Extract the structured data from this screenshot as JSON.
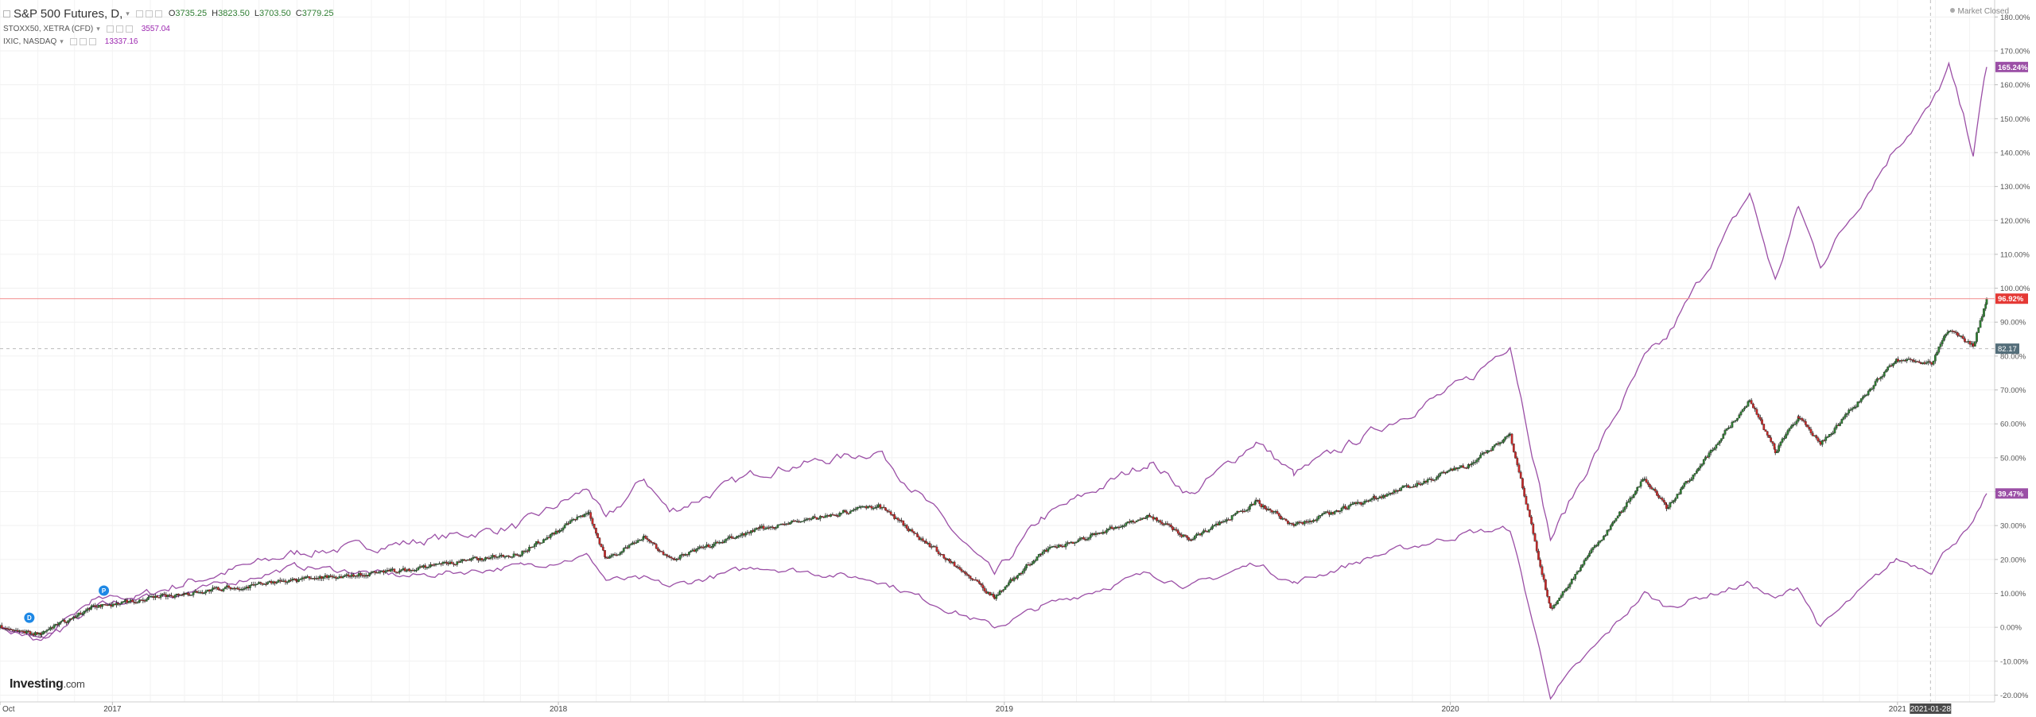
{
  "header": {
    "symbol": "S&P 500 Futures, D,",
    "ohlc": {
      "o_label": "O",
      "o": "3735.25",
      "h_label": "H",
      "h": "3823.50",
      "l_label": "L",
      "l": "3703.50",
      "c_label": "C",
      "c": "3779.25"
    },
    "compare": [
      {
        "name": "STOXX50, XETRA (CFD)",
        "value": "3557.04"
      },
      {
        "name": "IXIC, NASDAQ",
        "value": "13337.16"
      }
    ]
  },
  "status": "Market Closed",
  "branding": {
    "name": "Investing",
    "suffix": ".com"
  },
  "markers": [
    {
      "letter": "D",
      "kind": "dividend"
    },
    {
      "letter": "P",
      "kind": "event"
    }
  ],
  "crosshair_date": "2021-01-28",
  "colors": {
    "up": "#2e7d32",
    "down": "#c62828",
    "compare": "#9b4fa6",
    "last_line": "#f28b8b",
    "last_tag": "#e53935",
    "ref_tag": "#546e7a"
  },
  "chart_data": {
    "type": "line",
    "y_unit": "percent change",
    "ylim": [
      -22,
      185
    ],
    "x_start": "2016-10-01",
    "x_end": "2021-03-15",
    "x_ticks": [
      {
        "date": "2016-10-01",
        "label": "Oct"
      },
      {
        "date": "2017-01-01",
        "label": "2017"
      },
      {
        "date": "2018-01-01",
        "label": "2018"
      },
      {
        "date": "2019-01-01",
        "label": "2019"
      },
      {
        "date": "2020-01-01",
        "label": "2020"
      },
      {
        "date": "2021-01-01",
        "label": "2021"
      }
    ],
    "y_ticks": [
      -20,
      -10,
      0,
      10,
      20,
      30,
      40,
      50,
      60,
      70,
      80,
      90,
      100,
      110,
      120,
      130,
      140,
      150,
      160,
      170,
      180
    ],
    "y_tick_labels": [
      "-20.00%",
      "-10.00%",
      "0.00%",
      "10.00%",
      "20.00%",
      "30.00%",
      "40.00%",
      "50.00%",
      "60.00%",
      "70.00%",
      "80.00%",
      "90.00%",
      "100.00%",
      "110.00%",
      "120.00%",
      "130.00%",
      "140.00%",
      "150.00%",
      "160.00%",
      "170.00%",
      "180.00%"
    ],
    "grid": true,
    "series": [
      {
        "name": "S&P 500 Futures",
        "style": "candlestick",
        "points": [
          [
            "2016-10-01",
            0
          ],
          [
            "2016-11-04",
            -2
          ],
          [
            "2016-12-15",
            6
          ],
          [
            "2017-03-01",
            10
          ],
          [
            "2017-06-01",
            14
          ],
          [
            "2017-09-01",
            17
          ],
          [
            "2017-12-01",
            22
          ],
          [
            "2018-01-26",
            34
          ],
          [
            "2018-02-09",
            20
          ],
          [
            "2018-03-12",
            27
          ],
          [
            "2018-04-02",
            20
          ],
          [
            "2018-06-15",
            29
          ],
          [
            "2018-09-20",
            36
          ],
          [
            "2018-10-29",
            25
          ],
          [
            "2018-12-24",
            9
          ],
          [
            "2019-01-31",
            22
          ],
          [
            "2019-04-30",
            33
          ],
          [
            "2019-06-03",
            26
          ],
          [
            "2019-07-26",
            37
          ],
          [
            "2019-08-26",
            30
          ],
          [
            "2019-10-31",
            38
          ],
          [
            "2020-01-17",
            48
          ],
          [
            "2020-02-19",
            57
          ],
          [
            "2020-03-23",
            5
          ],
          [
            "2020-06-08",
            44
          ],
          [
            "2020-06-26",
            35
          ],
          [
            "2020-09-02",
            67
          ],
          [
            "2020-09-23",
            52
          ],
          [
            "2020-10-12",
            62
          ],
          [
            "2020-10-30",
            54
          ],
          [
            "2020-12-31",
            79
          ],
          [
            "2021-01-29",
            78
          ],
          [
            "2021-02-12",
            88
          ],
          [
            "2021-03-04",
            83
          ],
          [
            "2021-03-15",
            96.92
          ]
        ]
      },
      {
        "name": "IXIC, NASDAQ",
        "style": "line",
        "points": [
          [
            "2016-10-01",
            0
          ],
          [
            "2016-11-04",
            -4
          ],
          [
            "2016-12-15",
            5
          ],
          [
            "2017-03-01",
            13
          ],
          [
            "2017-06-01",
            22
          ],
          [
            "2017-09-01",
            25
          ],
          [
            "2017-12-01",
            30
          ],
          [
            "2018-01-26",
            41
          ],
          [
            "2018-02-09",
            31
          ],
          [
            "2018-03-12",
            44
          ],
          [
            "2018-04-02",
            34
          ],
          [
            "2018-06-15",
            46
          ],
          [
            "2018-09-20",
            52
          ],
          [
            "2018-10-29",
            37
          ],
          [
            "2018-12-24",
            15
          ],
          [
            "2019-01-31",
            32
          ],
          [
            "2019-04-30",
            49
          ],
          [
            "2019-06-03",
            39
          ],
          [
            "2019-07-26",
            55
          ],
          [
            "2019-08-26",
            45
          ],
          [
            "2019-10-31",
            58
          ],
          [
            "2020-01-17",
            73
          ],
          [
            "2020-02-19",
            84
          ],
          [
            "2020-03-23",
            26
          ],
          [
            "2020-06-08",
            79
          ],
          [
            "2020-06-26",
            85
          ],
          [
            "2020-09-02",
            128
          ],
          [
            "2020-09-23",
            102
          ],
          [
            "2020-10-12",
            124
          ],
          [
            "2020-10-30",
            107
          ],
          [
            "2020-12-31",
            142
          ],
          [
            "2021-01-29",
            154
          ],
          [
            "2021-02-12",
            165
          ],
          [
            "2021-03-04",
            140
          ],
          [
            "2021-03-15",
            165.24
          ]
        ]
      },
      {
        "name": "STOXX50, XETRA (CFD)",
        "style": "line",
        "points": [
          [
            "2016-10-01",
            0
          ],
          [
            "2016-11-04",
            -4
          ],
          [
            "2016-12-15",
            8
          ],
          [
            "2017-03-01",
            10
          ],
          [
            "2017-06-01",
            18
          ],
          [
            "2017-09-01",
            15
          ],
          [
            "2017-12-01",
            18
          ],
          [
            "2018-01-26",
            21
          ],
          [
            "2018-02-09",
            14
          ],
          [
            "2018-03-12",
            14
          ],
          [
            "2018-04-02",
            12
          ],
          [
            "2018-06-15",
            18
          ],
          [
            "2018-09-20",
            14
          ],
          [
            "2018-10-29",
            8
          ],
          [
            "2018-12-24",
            0
          ],
          [
            "2019-01-31",
            6
          ],
          [
            "2019-04-30",
            16
          ],
          [
            "2019-06-03",
            12
          ],
          [
            "2019-07-26",
            19
          ],
          [
            "2019-08-26",
            13
          ],
          [
            "2019-10-31",
            21
          ],
          [
            "2020-01-17",
            28
          ],
          [
            "2020-02-19",
            29
          ],
          [
            "2020-03-23",
            -20
          ],
          [
            "2020-06-08",
            10
          ],
          [
            "2020-06-26",
            6
          ],
          [
            "2020-09-02",
            13
          ],
          [
            "2020-09-23",
            8
          ],
          [
            "2020-10-12",
            12
          ],
          [
            "2020-10-30",
            0
          ],
          [
            "2020-12-31",
            20
          ],
          [
            "2021-01-29",
            17
          ],
          [
            "2021-02-12",
            24
          ],
          [
            "2021-03-04",
            30
          ],
          [
            "2021-03-15",
            39.47
          ]
        ]
      }
    ],
    "last_value_labels": [
      "165.24%",
      "96.92%",
      "39.47%"
    ],
    "reference_line_value": 82.17,
    "reference_line_label": "82.17",
    "crosshair_x": "2021-01-28"
  }
}
